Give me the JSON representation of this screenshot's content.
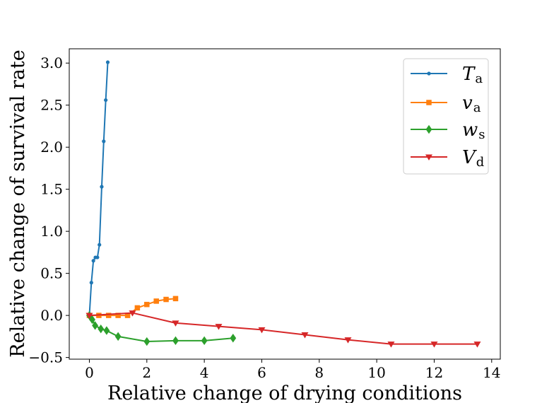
{
  "chart_data": {
    "type": "line",
    "title": "",
    "xlabel": "Relative change of drying conditions",
    "ylabel": "Relative change of survival rate",
    "xlim": [
      -0.7,
      14.3
    ],
    "ylim": [
      -0.52,
      3.17
    ],
    "xticks": [
      0,
      2,
      4,
      6,
      8,
      10,
      12,
      14
    ],
    "yticks": [
      -0.5,
      0.0,
      0.5,
      1.0,
      1.5,
      2.0,
      2.5,
      3.0
    ],
    "xtick_labels": [
      "0",
      "2",
      "4",
      "6",
      "8",
      "10",
      "12",
      "14"
    ],
    "ytick_labels": [
      "−0.5",
      "0.0",
      "0.5",
      "1.0",
      "1.5",
      "2.0",
      "2.5",
      "3.0"
    ],
    "grid": false,
    "legend_position": "top-right",
    "series": [
      {
        "name": "T",
        "subscript": "a",
        "color": "#1f77b4",
        "marker": "circle",
        "x": [
          0.0,
          0.07,
          0.14,
          0.21,
          0.28,
          0.35,
          0.43,
          0.5,
          0.57,
          0.64
        ],
        "y": [
          0.0,
          0.39,
          0.65,
          0.69,
          0.69,
          0.84,
          1.53,
          2.07,
          2.56,
          3.01
        ]
      },
      {
        "name": "v",
        "subscript": "a",
        "color": "#ff7f0e",
        "marker": "square",
        "x": [
          0.0,
          0.33,
          0.67,
          1.0,
          1.33,
          1.67,
          2.0,
          2.33,
          2.67,
          3.0
        ],
        "y": [
          0.0,
          0.0,
          0.0,
          0.0,
          0.0,
          0.09,
          0.13,
          0.17,
          0.19,
          0.2
        ]
      },
      {
        "name": "w",
        "subscript": "s",
        "color": "#2ca02c",
        "marker": "diamond",
        "x": [
          0.0,
          0.1,
          0.2,
          0.4,
          0.6,
          1.0,
          2.0,
          3.0,
          4.0,
          5.0
        ],
        "y": [
          0.0,
          -0.05,
          -0.12,
          -0.16,
          -0.18,
          -0.25,
          -0.31,
          -0.3,
          -0.3,
          -0.27
        ]
      },
      {
        "name": "V",
        "subscript": "d",
        "color": "#d62728",
        "marker": "triangle-down",
        "x": [
          0.0,
          1.5,
          3.0,
          4.5,
          6.0,
          7.5,
          9.0,
          10.5,
          12.0,
          13.5
        ],
        "y": [
          0.0,
          0.03,
          -0.09,
          -0.13,
          -0.17,
          -0.23,
          -0.29,
          -0.34,
          -0.34,
          -0.34
        ]
      }
    ]
  }
}
